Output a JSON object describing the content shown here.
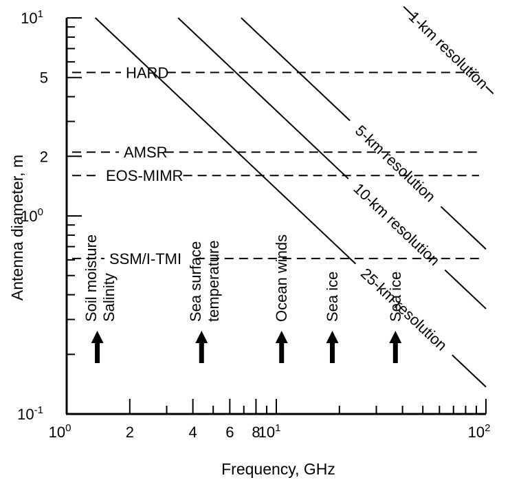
{
  "chart_data": {
    "type": "line",
    "xlabel": "Frequency, GHz",
    "ylabel": "Antenna diameter, m",
    "x_scale": "log",
    "y_scale": "log",
    "xlim": [
      1,
      100
    ],
    "ylim": [
      0.1,
      10
    ],
    "x_ticks": [
      {
        "value": 1,
        "base": "10",
        "exp": "0"
      },
      {
        "value": 2,
        "label": "2"
      },
      {
        "value": 4,
        "label": "4"
      },
      {
        "value": 6,
        "label": "6"
      },
      {
        "value": 8,
        "label": "8"
      },
      {
        "value": 10,
        "base": "10",
        "exp": "1"
      },
      {
        "value": 100,
        "base": "10",
        "exp": "2"
      }
    ],
    "x_minor_ticks": [
      3,
      5,
      7,
      9,
      20,
      30,
      40,
      50,
      60,
      70,
      80,
      90
    ],
    "y_ticks": [
      {
        "value": 0.1,
        "base": "10",
        "exp": "-1"
      },
      {
        "value": 1,
        "base": "10",
        "exp": "0"
      },
      {
        "value": 2,
        "label": "2"
      },
      {
        "value": 5,
        "label": "5"
      },
      {
        "value": 10,
        "base": "10",
        "exp": "1"
      }
    ],
    "y_minor_ticks": [
      0.2,
      0.3,
      0.4,
      0.5,
      0.6,
      0.7,
      0.8,
      0.9,
      3,
      4,
      6,
      7,
      8,
      9
    ],
    "resolution_lines": [
      {
        "name": "1-km resolution",
        "x": [
          46,
          100
        ],
        "y": [
          10,
          4.5
        ]
      },
      {
        "name": "5-km resolution",
        "x": [
          6.8,
          100
        ],
        "y": [
          10,
          0.68
        ]
      },
      {
        "name": "10-km resolution",
        "x": [
          3.4,
          100
        ],
        "y": [
          10,
          0.34
        ]
      },
      {
        "name": "25-km resolution",
        "x": [
          1.37,
          100
        ],
        "y": [
          10,
          0.137
        ]
      }
    ],
    "instrument_lines": [
      {
        "name": "HARD",
        "y": 5.3
      },
      {
        "name": "AMSR",
        "y": 2.1
      },
      {
        "name": "EOS-MIMR",
        "y": 1.6
      },
      {
        "name": "SSM/I-TMI",
        "y": 0.61
      }
    ],
    "frequency_markers": [
      {
        "x": 1.4,
        "label": "Soil moisture",
        "label2": "Salinity"
      },
      {
        "x": 4.4,
        "label": "Sea surface",
        "label2": "temperature"
      },
      {
        "x": 10.6,
        "label": "Ocean winds"
      },
      {
        "x": 18.5,
        "label": "Sea ice"
      },
      {
        "x": 37,
        "label": "Sea ice"
      }
    ],
    "grid": false,
    "legend": "none"
  }
}
